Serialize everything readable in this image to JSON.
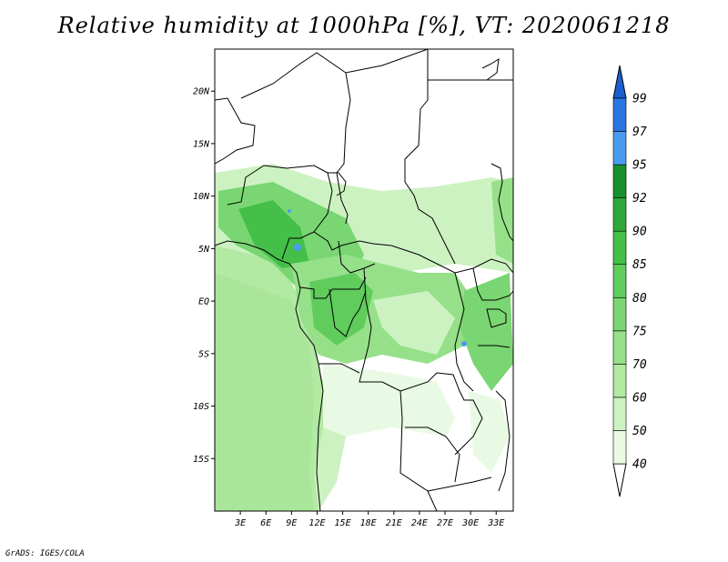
{
  "title": "Relative humidity at 1000hPa [%], VT: 2020061218",
  "credit": "GrADS: IGES/COLA",
  "map": {
    "lon_range": [
      0,
      35
    ],
    "lat_range": [
      -20,
      24
    ],
    "lon_ticks": [
      "3E",
      "6E",
      "9E",
      "12E",
      "15E",
      "18E",
      "21E",
      "24E",
      "27E",
      "30E",
      "33E"
    ],
    "lat_ticks": [
      "20N",
      "15N",
      "10N",
      "5N",
      "EQ",
      "5S",
      "10S",
      "15S"
    ]
  },
  "colorbar": {
    "labels": [
      "40",
      "50",
      "60",
      "70",
      "75",
      "80",
      "85",
      "90",
      "92",
      "95",
      "97",
      "99"
    ],
    "colors": [
      "#ffffff",
      "#e8fae3",
      "#cdf2c2",
      "#b2e9a3",
      "#96e08a",
      "#7ad672",
      "#5fcc5c",
      "#44bf48",
      "#2ea83a",
      "#1a8f2e",
      "#4a9cf0",
      "#2a76e0",
      "#1a5fcf"
    ]
  }
}
